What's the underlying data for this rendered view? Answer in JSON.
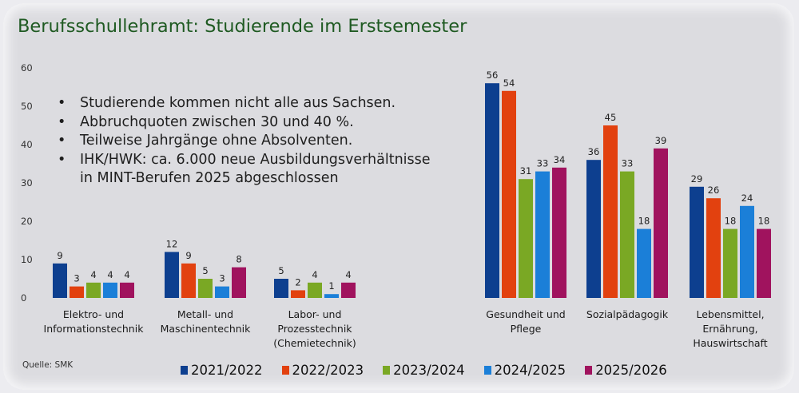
{
  "title": "Berufsschullehramt: Studierende im Erstsemester",
  "notes": [
    "Studierende kommen nicht alle aus Sachsen.",
    "Abbruchquoten zwischen 30 und 40 %.",
    "Teilweise Jahrgänge ohne Absolventen.",
    "IHK/HWK: ca. 6.000 neue Ausbildungsverhältnisse in MINT-Berufen 2025 abgeschlossen"
  ],
  "notes_display": {
    "line1": "Studierende kommen nicht alle aus Sachsen.",
    "line2": "Abbruchquoten zwischen 30 und 40 %.",
    "line3": "Teilweise Jahrgänge ohne Absolventen.",
    "line4a": "IHK/HWK: ca. 6.000 neue Ausbildungsverhältnisse",
    "line4b": "in MINT-Berufen 2025 abgeschlossen",
    "bullet": "•"
  },
  "source": "Quelle: SMK",
  "chart_data": {
    "type": "bar",
    "title": "Berufsschullehramt: Studierende im Erstsemester",
    "xlabel": "",
    "ylabel": "",
    "ylim": [
      0,
      60
    ],
    "yticks": [
      0,
      10,
      20,
      30,
      40,
      50,
      60
    ],
    "grid": false,
    "legend_position": "bottom",
    "data_labels": true,
    "categories": [
      [
        "Elektro- und",
        "Informationstechnik"
      ],
      [
        "Metall- und",
        "Maschinentechnik"
      ],
      [
        "Labor- und",
        "Prozesstechnik",
        "(Chemietechnik)"
      ],
      [
        "Gesundheit und",
        "Pflege"
      ],
      [
        "Sozialpädagogik"
      ],
      [
        "Lebensmittel,",
        "Ernährung,",
        "Hauswirtschaft"
      ]
    ],
    "series": [
      {
        "name": "2021/2022",
        "color": "#0d3f8f",
        "values": [
          9,
          12,
          5,
          56,
          36,
          29
        ]
      },
      {
        "name": "2022/2023",
        "color": "#e2410f",
        "values": [
          3,
          9,
          2,
          54,
          45,
          26
        ]
      },
      {
        "name": "2023/2024",
        "color": "#7aa824",
        "values": [
          4,
          5,
          4,
          31,
          33,
          18
        ]
      },
      {
        "name": "2024/2025",
        "color": "#1b7fd8",
        "values": [
          4,
          3,
          1,
          33,
          18,
          24
        ]
      },
      {
        "name": "2025/2026",
        "color": "#a0135e",
        "values": [
          4,
          8,
          4,
          34,
          39,
          18
        ]
      }
    ]
  }
}
